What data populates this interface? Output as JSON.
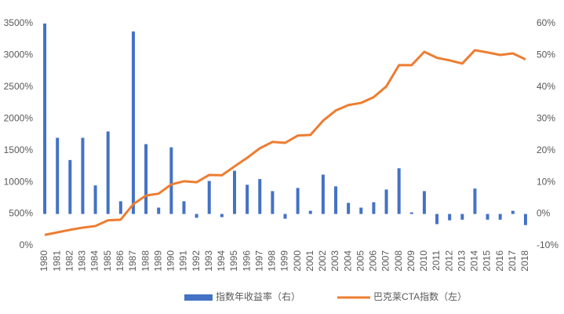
{
  "chart_data": {
    "type": "bar-line",
    "categories": [
      "1980",
      "1981",
      "1982",
      "1983",
      "1984",
      "1985",
      "1986",
      "1987",
      "1988",
      "1989",
      "1990",
      "1991",
      "1992",
      "1993",
      "1994",
      "1995",
      "1996",
      "1997",
      "1998",
      "1999",
      "2000",
      "2001",
      "2002",
      "2003",
      "2004",
      "2005",
      "2006",
      "2007",
      "2008",
      "2009",
      "2010",
      "2011",
      "2012",
      "2013",
      "2014",
      "2015",
      "2016",
      "2017",
      "2018"
    ],
    "series": [
      {
        "name": "指数年收益率（右）",
        "type": "bar",
        "axis": "y2",
        "color": "#4472c4",
        "values": [
          60,
          24,
          17,
          24,
          9,
          26,
          4,
          57.5,
          22,
          2,
          21,
          4,
          -1.2,
          10.4,
          -1,
          13.6,
          9.2,
          11,
          7.2,
          -1.5,
          8.2,
          1,
          12.4,
          8.7,
          3.5,
          2,
          3.7,
          7.7,
          14.4,
          0.5,
          7.2,
          -3.2,
          -2,
          -1.8,
          8,
          -1.8,
          -1.8,
          1,
          -3.5
        ]
      },
      {
        "name": "巴克莱CTA指数（左）",
        "type": "line",
        "axis": "y",
        "color": "#ed7d31",
        "values": [
          170,
          210,
          250,
          285,
          310,
          400,
          410,
          655,
          790,
          820,
          965,
          1015,
          1000,
          1115,
          1110,
          1250,
          1385,
          1535,
          1635,
          1620,
          1735,
          1745,
          1970,
          2130,
          2215,
          2250,
          2340,
          2510,
          2845,
          2845,
          3055,
          2960,
          2920,
          2870,
          3080,
          3045,
          3005,
          3030,
          2935
        ]
      }
    ],
    "ylim": [
      0,
      3500
    ],
    "yticks": [
      {
        "value": 0,
        "label": "0%"
      },
      {
        "value": 500,
        "label": "500%"
      },
      {
        "value": 1000,
        "label": "1000%"
      },
      {
        "value": 1500,
        "label": "1500%"
      },
      {
        "value": 2000,
        "label": "2000%"
      },
      {
        "value": 2500,
        "label": "2500%"
      },
      {
        "value": 3000,
        "label": "3000%"
      },
      {
        "value": 3500,
        "label": "3500%"
      }
    ],
    "y2lim": [
      -10,
      60
    ],
    "y2ticks": [
      {
        "value": -10,
        "label": "-10%"
      },
      {
        "value": 0,
        "label": "0%"
      },
      {
        "value": 10,
        "label": "10%"
      },
      {
        "value": 20,
        "label": "20%"
      },
      {
        "value": 30,
        "label": "30%"
      },
      {
        "value": 40,
        "label": "40%"
      },
      {
        "value": 50,
        "label": "50%"
      },
      {
        "value": 60,
        "label": "60%"
      }
    ],
    "legend": "bottom"
  }
}
